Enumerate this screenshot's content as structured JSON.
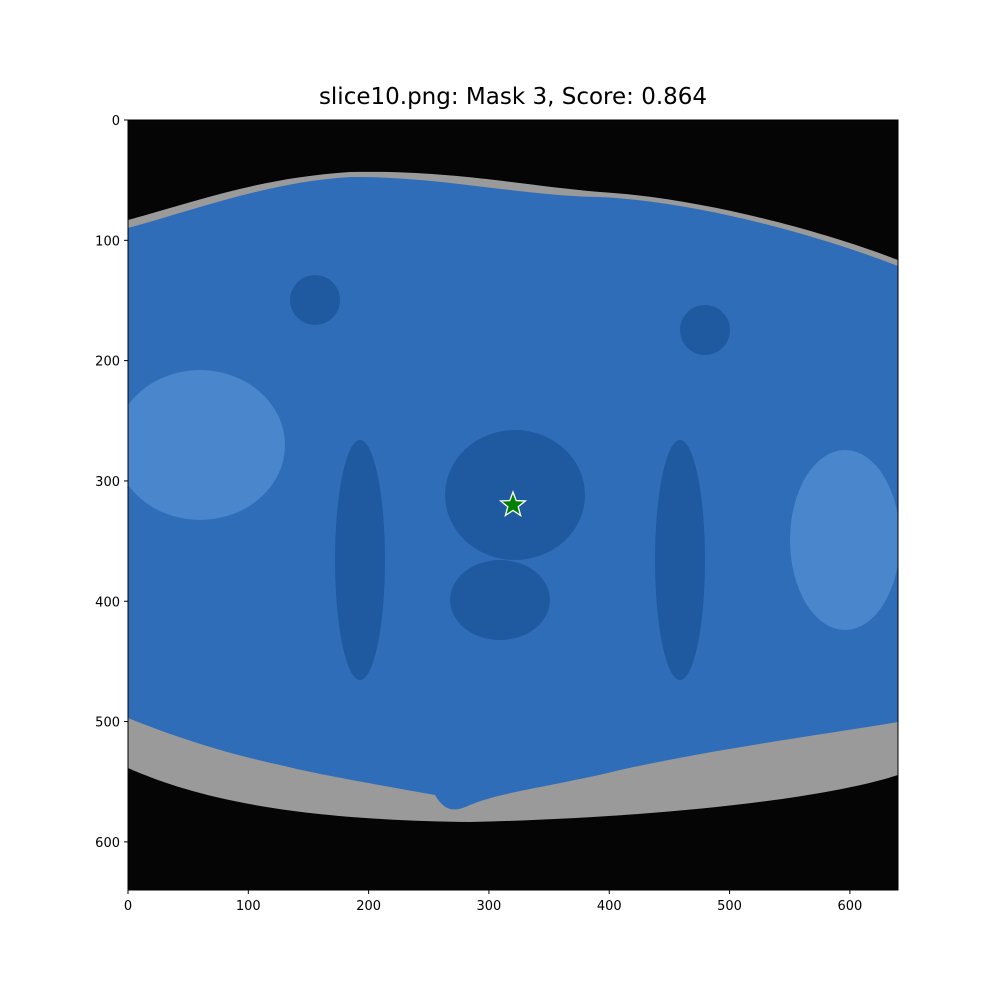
{
  "chart_data": {
    "type": "image",
    "title": "slice10.png: Mask 3, Score: 0.864",
    "xlim": [
      0,
      640
    ],
    "ylim": [
      640,
      0
    ],
    "xticks": [
      0,
      100,
      200,
      300,
      400,
      500,
      600
    ],
    "yticks": [
      0,
      100,
      200,
      300,
      400,
      500,
      600
    ],
    "points": {
      "x": [
        320
      ],
      "y": [
        320
      ],
      "color": "#008000",
      "marker": "star"
    }
  }
}
